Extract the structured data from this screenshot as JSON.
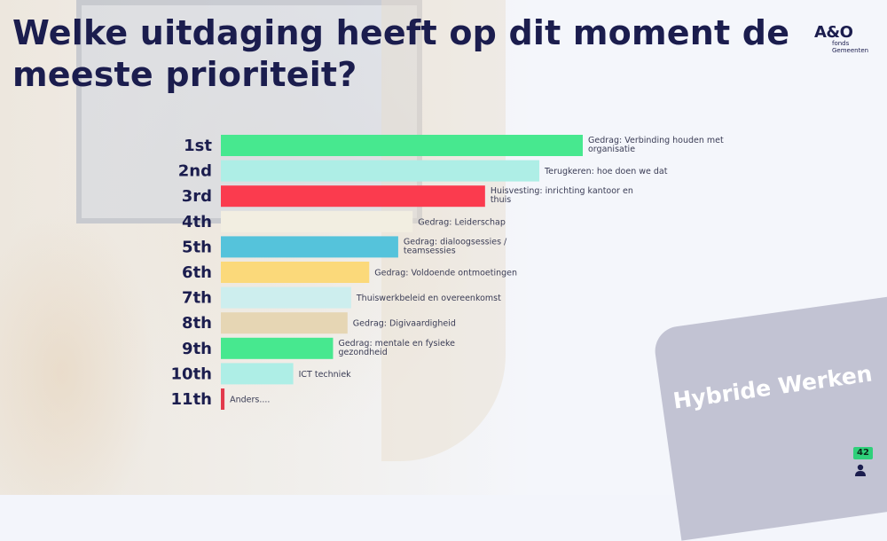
{
  "title": "Welke uitdaging heeft op dit moment de meeste prioriteit?",
  "logo": {
    "main": "A&O",
    "sub_line1": "fonds",
    "sub_line2": "Gemeenten"
  },
  "badge": {
    "text": "Hybride Werken",
    "color": "#c2c3d3"
  },
  "participants": {
    "count": "42",
    "icon": "person-icon"
  },
  "chart_data": {
    "type": "bar",
    "orientation": "horizontal",
    "title": "Welke uitdaging heeft op dit moment de meeste prioriteit?",
    "xlabel": "",
    "ylabel": "",
    "grid": false,
    "legend": "none",
    "xlim": [
      0,
      100
    ],
    "categories": [
      "1st",
      "2nd",
      "3rd",
      "4th",
      "5th",
      "6th",
      "7th",
      "8th",
      "9th",
      "10th",
      "11th"
    ],
    "bar_labels": [
      [
        "Gedrag: Verbinding houden met",
        "organisatie"
      ],
      [
        "Terugkeren: hoe doen we dat"
      ],
      [
        "Huisvesting: inrichting kantoor en",
        "thuis"
      ],
      [
        "Gedrag: Leiderschap"
      ],
      [
        "Gedrag: dialoogsessies /",
        "teamsessies"
      ],
      [
        "Gedrag: Voldoende ontmoetingen"
      ],
      [
        "Thuiswerkbeleid en overeenkomst"
      ],
      [
        "Gedrag: Digivaardigheid"
      ],
      [
        "Gedrag: mentale en fysieke",
        "gezondheid"
      ],
      [
        "ICT techniek"
      ],
      [
        "Anders...."
      ]
    ],
    "values": [
      100,
      88,
      73,
      53,
      49,
      41,
      36,
      35,
      31,
      20,
      1
    ],
    "colors": [
      "#47e88f",
      "#aeeee6",
      "#fb3b4e",
      "#f2eee1",
      "#55c3db",
      "#fbd97a",
      "#cdeeee",
      "#e6d6b4",
      "#47e88f",
      "#aeeee6",
      "#e23a4c"
    ]
  }
}
